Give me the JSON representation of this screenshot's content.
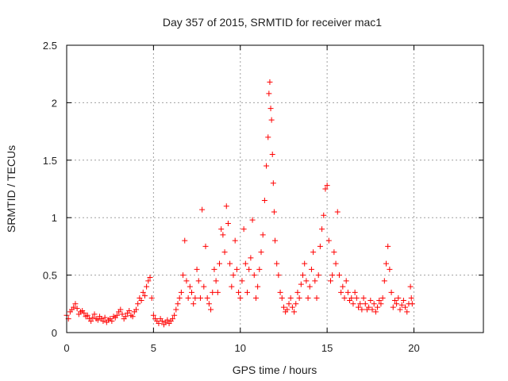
{
  "chart_data": {
    "type": "scatter",
    "title": "Day 357 of 2015, SRMTID for receiver mac1",
    "xlabel": "GPS time / hours",
    "ylabel": "SRMTID / TECUs",
    "xlim": [
      0,
      24
    ],
    "ylim": [
      0,
      2.5
    ],
    "x_ticks": [
      0,
      5,
      10,
      15,
      20
    ],
    "x_tick_labels": [
      "0",
      "5",
      "10",
      "15",
      "20"
    ],
    "y_ticks": [
      0,
      0.5,
      1,
      1.5,
      2,
      2.5
    ],
    "y_tick_labels": [
      "0",
      "0.5",
      "1",
      "1.5",
      "2",
      "2.5"
    ],
    "grid": true,
    "marker": "+",
    "series": [
      {
        "name": "SRMTID",
        "color": "#ff0000",
        "points": [
          [
            0.0,
            0.15
          ],
          [
            0.1,
            0.12
          ],
          [
            0.2,
            0.18
          ],
          [
            0.3,
            0.2
          ],
          [
            0.4,
            0.22
          ],
          [
            0.5,
            0.25
          ],
          [
            0.6,
            0.21
          ],
          [
            0.7,
            0.16
          ],
          [
            0.8,
            0.18
          ],
          [
            0.9,
            0.19
          ],
          [
            1.0,
            0.17
          ],
          [
            1.1,
            0.14
          ],
          [
            1.2,
            0.15
          ],
          [
            1.3,
            0.12
          ],
          [
            1.4,
            0.1
          ],
          [
            1.5,
            0.13
          ],
          [
            1.6,
            0.16
          ],
          [
            1.7,
            0.12
          ],
          [
            1.8,
            0.11
          ],
          [
            1.9,
            0.14
          ],
          [
            2.0,
            0.12
          ],
          [
            2.1,
            0.1
          ],
          [
            2.2,
            0.13
          ],
          [
            2.3,
            0.09
          ],
          [
            2.4,
            0.11
          ],
          [
            2.5,
            0.12
          ],
          [
            2.6,
            0.1
          ],
          [
            2.7,
            0.14
          ],
          [
            2.8,
            0.13
          ],
          [
            2.9,
            0.15
          ],
          [
            3.0,
            0.18
          ],
          [
            3.1,
            0.2
          ],
          [
            3.2,
            0.16
          ],
          [
            3.3,
            0.12
          ],
          [
            3.4,
            0.14
          ],
          [
            3.5,
            0.17
          ],
          [
            3.6,
            0.19
          ],
          [
            3.7,
            0.15
          ],
          [
            3.8,
            0.14
          ],
          [
            3.9,
            0.18
          ],
          [
            4.0,
            0.2
          ],
          [
            4.1,
            0.25
          ],
          [
            4.2,
            0.3
          ],
          [
            4.3,
            0.28
          ],
          [
            4.4,
            0.35
          ],
          [
            4.5,
            0.32
          ],
          [
            4.6,
            0.4
          ],
          [
            4.7,
            0.45
          ],
          [
            4.8,
            0.48
          ],
          [
            4.9,
            0.3
          ],
          [
            5.0,
            0.15
          ],
          [
            5.1,
            0.12
          ],
          [
            5.2,
            0.1
          ],
          [
            5.3,
            0.08
          ],
          [
            5.4,
            0.12
          ],
          [
            5.5,
            0.1
          ],
          [
            5.6,
            0.07
          ],
          [
            5.7,
            0.09
          ],
          [
            5.8,
            0.11
          ],
          [
            5.9,
            0.08
          ],
          [
            6.0,
            0.1
          ],
          [
            6.1,
            0.12
          ],
          [
            6.2,
            0.15
          ],
          [
            6.3,
            0.2
          ],
          [
            6.4,
            0.25
          ],
          [
            6.5,
            0.3
          ],
          [
            6.6,
            0.35
          ],
          [
            6.7,
            0.5
          ],
          [
            6.8,
            0.8
          ],
          [
            6.9,
            0.45
          ],
          [
            7.0,
            0.3
          ],
          [
            7.1,
            0.4
          ],
          [
            7.2,
            0.35
          ],
          [
            7.3,
            0.25
          ],
          [
            7.4,
            0.3
          ],
          [
            7.5,
            0.55
          ],
          [
            7.6,
            0.45
          ],
          [
            7.7,
            0.3
          ],
          [
            7.8,
            1.07
          ],
          [
            7.9,
            0.4
          ],
          [
            8.0,
            0.75
          ],
          [
            8.1,
            0.3
          ],
          [
            8.2,
            0.25
          ],
          [
            8.3,
            0.2
          ],
          [
            8.4,
            0.35
          ],
          [
            8.5,
            0.55
          ],
          [
            8.6,
            0.45
          ],
          [
            8.7,
            0.35
          ],
          [
            8.8,
            0.6
          ],
          [
            8.9,
            0.9
          ],
          [
            9.0,
            0.85
          ],
          [
            9.1,
            0.7
          ],
          [
            9.2,
            1.1
          ],
          [
            9.3,
            0.95
          ],
          [
            9.4,
            0.6
          ],
          [
            9.5,
            0.4
          ],
          [
            9.6,
            0.5
          ],
          [
            9.7,
            0.8
          ],
          [
            9.8,
            0.55
          ],
          [
            9.9,
            0.35
          ],
          [
            10.0,
            0.3
          ],
          [
            10.1,
            0.45
          ],
          [
            10.2,
            0.9
          ],
          [
            10.3,
            0.6
          ],
          [
            10.4,
            0.35
          ],
          [
            10.5,
            0.55
          ],
          [
            10.6,
            0.65
          ],
          [
            10.7,
            0.98
          ],
          [
            10.8,
            0.5
          ],
          [
            10.9,
            0.3
          ],
          [
            11.0,
            0.4
          ],
          [
            11.1,
            0.55
          ],
          [
            11.2,
            0.7
          ],
          [
            11.3,
            0.85
          ],
          [
            11.4,
            1.15
          ],
          [
            11.5,
            1.45
          ],
          [
            11.6,
            1.7
          ],
          [
            11.65,
            2.08
          ],
          [
            11.7,
            2.18
          ],
          [
            11.75,
            1.95
          ],
          [
            11.8,
            1.85
          ],
          [
            11.85,
            1.55
          ],
          [
            11.9,
            1.3
          ],
          [
            11.95,
            1.05
          ],
          [
            12.0,
            0.8
          ],
          [
            12.1,
            0.6
          ],
          [
            12.2,
            0.5
          ],
          [
            12.3,
            0.35
          ],
          [
            12.4,
            0.3
          ],
          [
            12.5,
            0.22
          ],
          [
            12.6,
            0.18
          ],
          [
            12.7,
            0.2
          ],
          [
            12.8,
            0.25
          ],
          [
            12.9,
            0.3
          ],
          [
            13.0,
            0.22
          ],
          [
            13.1,
            0.18
          ],
          [
            13.2,
            0.25
          ],
          [
            13.3,
            0.35
          ],
          [
            13.4,
            0.3
          ],
          [
            13.5,
            0.42
          ],
          [
            13.6,
            0.5
          ],
          [
            13.7,
            0.6
          ],
          [
            13.8,
            0.45
          ],
          [
            13.9,
            0.3
          ],
          [
            14.0,
            0.4
          ],
          [
            14.1,
            0.55
          ],
          [
            14.2,
            0.7
          ],
          [
            14.3,
            0.45
          ],
          [
            14.4,
            0.3
          ],
          [
            14.5,
            0.5
          ],
          [
            14.6,
            0.75
          ],
          [
            14.7,
            0.9
          ],
          [
            14.8,
            1.02
          ],
          [
            14.9,
            1.25
          ],
          [
            15.0,
            1.28
          ],
          [
            15.1,
            0.8
          ],
          [
            15.2,
            0.45
          ],
          [
            15.3,
            0.5
          ],
          [
            15.4,
            0.7
          ],
          [
            15.5,
            0.6
          ],
          [
            15.6,
            1.05
          ],
          [
            15.7,
            0.5
          ],
          [
            15.8,
            0.35
          ],
          [
            15.9,
            0.4
          ],
          [
            16.0,
            0.3
          ],
          [
            16.1,
            0.45
          ],
          [
            16.2,
            0.35
          ],
          [
            16.3,
            0.28
          ],
          [
            16.4,
            0.3
          ],
          [
            16.5,
            0.25
          ],
          [
            16.6,
            0.35
          ],
          [
            16.7,
            0.3
          ],
          [
            16.8,
            0.22
          ],
          [
            16.9,
            0.25
          ],
          [
            17.0,
            0.2
          ],
          [
            17.1,
            0.3
          ],
          [
            17.2,
            0.25
          ],
          [
            17.3,
            0.2
          ],
          [
            17.4,
            0.22
          ],
          [
            17.5,
            0.28
          ],
          [
            17.6,
            0.2
          ],
          [
            17.7,
            0.25
          ],
          [
            17.8,
            0.18
          ],
          [
            17.9,
            0.22
          ],
          [
            18.0,
            0.28
          ],
          [
            18.1,
            0.25
          ],
          [
            18.2,
            0.3
          ],
          [
            18.3,
            0.45
          ],
          [
            18.4,
            0.6
          ],
          [
            18.5,
            0.75
          ],
          [
            18.6,
            0.55
          ],
          [
            18.7,
            0.35
          ],
          [
            18.8,
            0.22
          ],
          [
            18.9,
            0.28
          ],
          [
            19.0,
            0.25
          ],
          [
            19.1,
            0.3
          ],
          [
            19.2,
            0.2
          ],
          [
            19.3,
            0.24
          ],
          [
            19.4,
            0.28
          ],
          [
            19.5,
            0.22
          ],
          [
            19.6,
            0.18
          ],
          [
            19.7,
            0.25
          ],
          [
            19.8,
            0.4
          ],
          [
            19.85,
            0.3
          ],
          [
            19.9,
            0.25
          ]
        ]
      }
    ]
  }
}
